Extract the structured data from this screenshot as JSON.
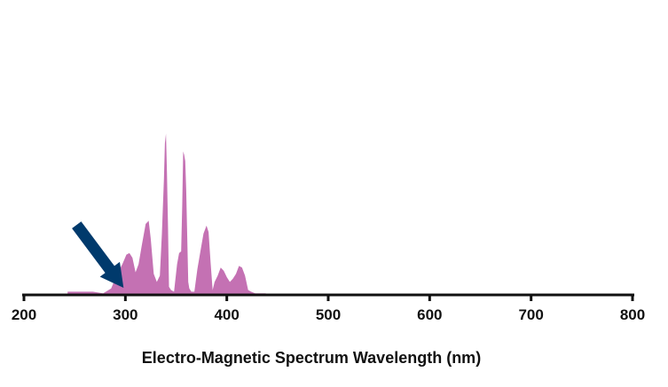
{
  "chart_data": {
    "type": "area",
    "title": "",
    "xlabel": "Electro-Magnetic Spectrum Wavelength (nm)",
    "ylabel": "",
    "xlim": [
      200,
      800
    ],
    "ylim": [
      0,
      1.0
    ],
    "xticks": [
      200,
      300,
      400,
      500,
      600,
      700,
      800
    ],
    "xtick_labels": [
      "200",
      "300",
      "400",
      "500",
      "600",
      "700",
      "800"
    ],
    "grid": false,
    "legend": "none",
    "series": [
      {
        "color": "#c471b3",
        "x": [
          243,
          268,
          278,
          286,
          292,
          297,
          301,
          304,
          307,
          310,
          313,
          316,
          320,
          323,
          325,
          328,
          331,
          334,
          336,
          338,
          339,
          340,
          341,
          342,
          343,
          345,
          348,
          351,
          353,
          355,
          356,
          357,
          358,
          359,
          360,
          361,
          362,
          363,
          365,
          368,
          371,
          374,
          377,
          380,
          382,
          384,
          386,
          388,
          391,
          394,
          397,
          400,
          403,
          406,
          409,
          412,
          415,
          418,
          421,
          424,
          428,
          433,
          438,
          444
        ],
        "y": [
          0.02,
          0.02,
          0.01,
          0.04,
          0.13,
          0.19,
          0.25,
          0.26,
          0.23,
          0.14,
          0.19,
          0.3,
          0.44,
          0.46,
          0.35,
          0.13,
          0.08,
          0.12,
          0.38,
          0.72,
          0.94,
          1.0,
          0.76,
          0.42,
          0.05,
          0.03,
          0.02,
          0.19,
          0.26,
          0.27,
          0.55,
          0.89,
          0.87,
          0.83,
          0.65,
          0.35,
          0.08,
          0.04,
          0.02,
          0.02,
          0.16,
          0.27,
          0.38,
          0.43,
          0.39,
          0.2,
          0.03,
          0.08,
          0.12,
          0.17,
          0.15,
          0.11,
          0.08,
          0.1,
          0.13,
          0.18,
          0.17,
          0.12,
          0.03,
          0.02,
          0.01,
          0.01,
          0.01,
          0.0
        ]
      }
    ],
    "annotations": [
      {
        "type": "arrow",
        "color": "#003a6c",
        "target_x": 300,
        "target_y": 0.0
      }
    ]
  }
}
